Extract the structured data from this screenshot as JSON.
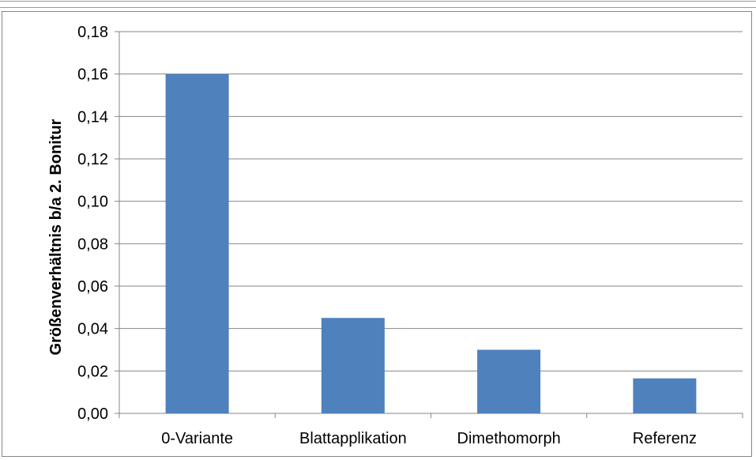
{
  "chart_data": {
    "type": "bar",
    "title": "",
    "xlabel": "",
    "ylabel": "Größenverhältnis b/a 2. Bonitur",
    "categories": [
      "0-Variante",
      "Blattapplikation",
      "Dimethomorph",
      "Referenz"
    ],
    "values": [
      0.16,
      0.045,
      0.03,
      0.0165
    ],
    "ylim": [
      0,
      0.18
    ],
    "yticks": [
      "0,00",
      "0,02",
      "0,04",
      "0,06",
      "0,08",
      "0,10",
      "0,12",
      "0,14",
      "0,16",
      "0,18"
    ],
    "ytick_values": [
      0,
      0.02,
      0.04,
      0.06,
      0.08,
      0.1,
      0.12,
      0.14,
      0.16,
      0.18
    ],
    "grid": true,
    "legend": "none",
    "bar_color": "#4f81bd"
  }
}
